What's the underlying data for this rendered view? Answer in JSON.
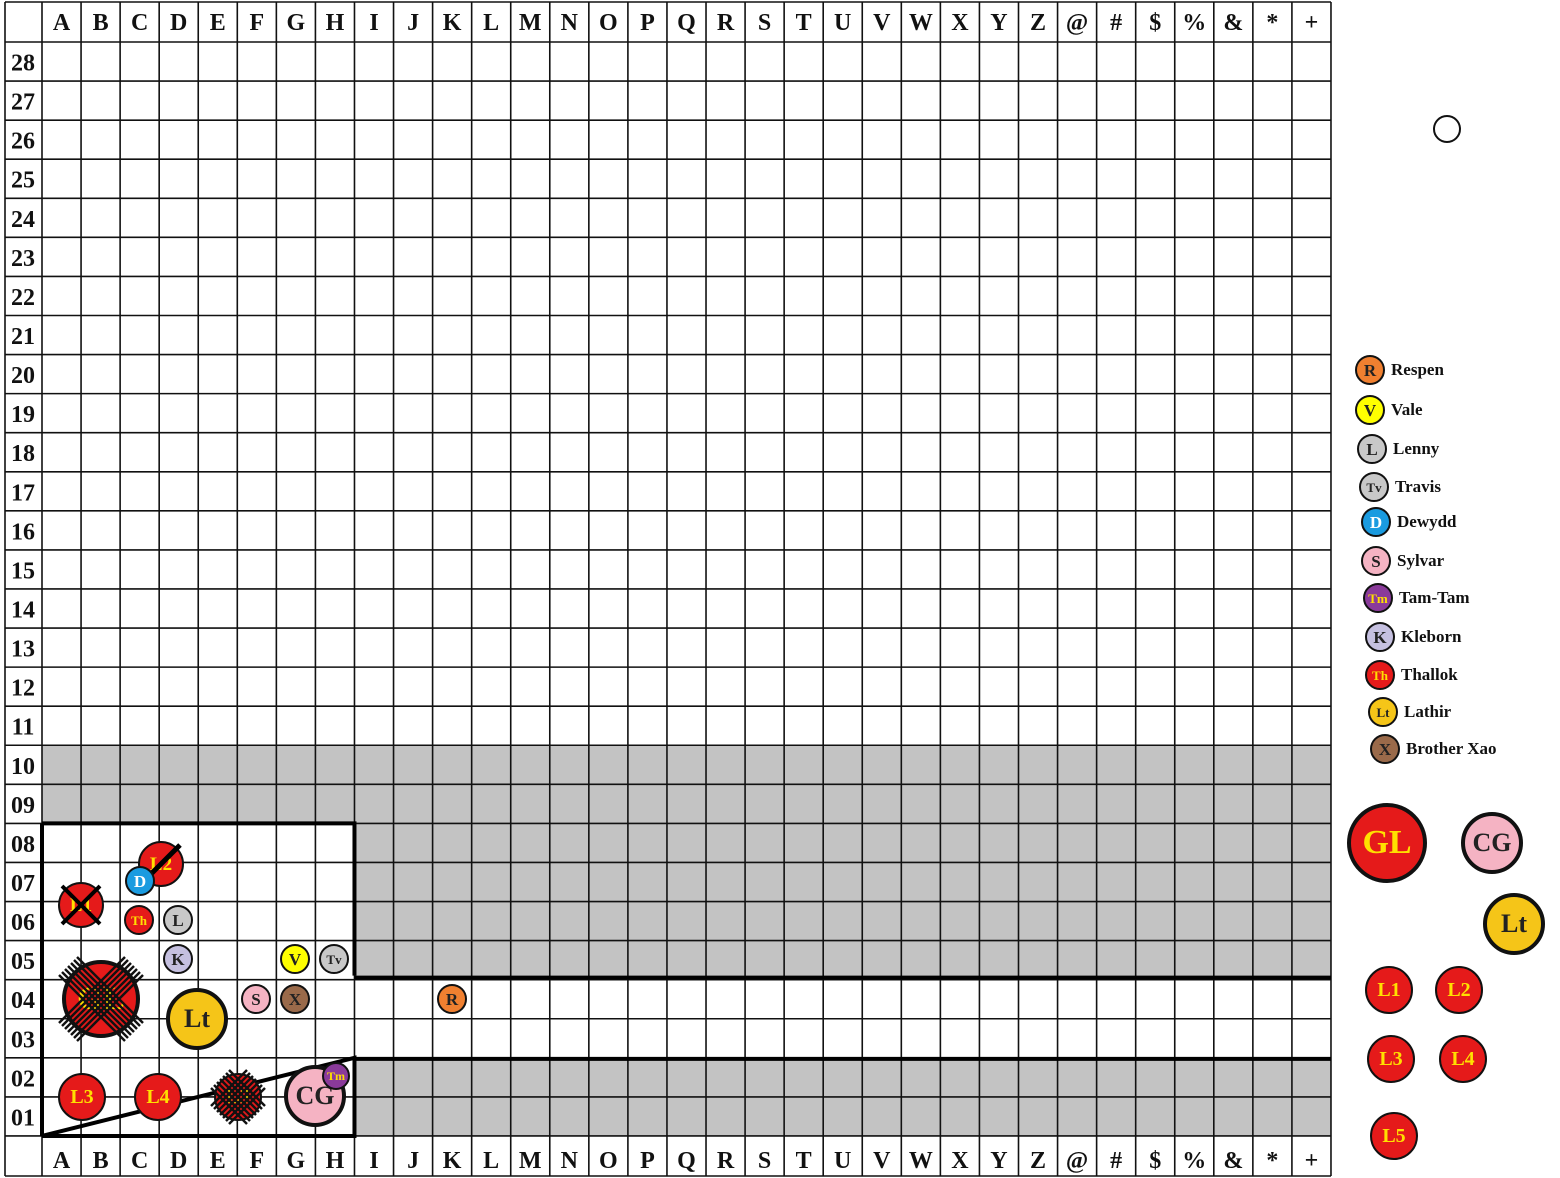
{
  "columns": [
    "A",
    "B",
    "C",
    "D",
    "E",
    "F",
    "G",
    "H",
    "I",
    "J",
    "K",
    "L",
    "M",
    "N",
    "O",
    "P",
    "Q",
    "R",
    "S",
    "T",
    "U",
    "V",
    "W",
    "X",
    "Y",
    "Z",
    "@",
    "#",
    "$",
    "%",
    "&",
    "*",
    "+"
  ],
  "rows": [
    "28",
    "27",
    "26",
    "25",
    "24",
    "23",
    "22",
    "21",
    "20",
    "19",
    "18",
    "17",
    "16",
    "15",
    "14",
    "13",
    "12",
    "11",
    "10",
    "09",
    "08",
    "07",
    "06",
    "05",
    "04",
    "03",
    "02",
    "01"
  ],
  "colors": {
    "shaded": "#c3c3c3",
    "grid": "#000000",
    "red": "#e51a1a",
    "pink": "#f5b3c3",
    "gold": "#f5c518",
    "yellow_text": "#ffe000"
  },
  "tokens_on_board": [
    {
      "label": "L2",
      "size": "std",
      "fill": "#e51a1a",
      "text": "#ffe000",
      "crossed": "slash"
    },
    {
      "label": "D",
      "size": "sm",
      "fill": "#1a9be0",
      "text": "#ffffff"
    },
    {
      "label": "L1",
      "size": "std",
      "fill": "#e51a1a",
      "text": "#ffe000",
      "crossed": "x"
    },
    {
      "label": "Th",
      "size": "sm",
      "fill": "#e51a1a",
      "text": "#ffe000"
    },
    {
      "label": "L",
      "size": "sm",
      "fill": "#c8c8c8",
      "text": "#222222"
    },
    {
      "label": "K",
      "size": "sm",
      "fill": "#c5c0e0",
      "text": "#222222"
    },
    {
      "label": "V",
      "size": "sm",
      "fill": "#ffff00",
      "text": "#222222"
    },
    {
      "label": "Tv",
      "size": "sm",
      "fill": "#c8c8c8",
      "text": "#222222"
    },
    {
      "label": "GL",
      "size": "big",
      "fill": "#e51a1a",
      "text": "#ffe000",
      "crossed": "scribble"
    },
    {
      "label": "Lt",
      "size": "big",
      "fill": "#f5c518",
      "text": "#222222"
    },
    {
      "label": "S",
      "size": "sm",
      "fill": "#f5b3c3",
      "text": "#222222"
    },
    {
      "label": "X",
      "size": "sm",
      "fill": "#9a6a4a",
      "text": "#222222"
    },
    {
      "label": "R",
      "size": "sm",
      "fill": "#f08030",
      "text": "#222222"
    },
    {
      "label": "L3",
      "size": "std",
      "fill": "#e51a1a",
      "text": "#ffe000"
    },
    {
      "label": "L4",
      "size": "std",
      "fill": "#e51a1a",
      "text": "#ffe000"
    },
    {
      "label": "L5",
      "size": "std",
      "fill": "#e51a1a",
      "text": "#ffe000",
      "crossed": "scribble"
    },
    {
      "label": "CG",
      "size": "big",
      "fill": "#f5b3c3",
      "text": "#222222"
    },
    {
      "label": "Tm",
      "size": "sm",
      "fill": "#8a3a9a",
      "text": "#ffe000"
    }
  ],
  "legend": [
    {
      "label": "R",
      "name": "Respen",
      "fill": "#f08030",
      "text": "#222222"
    },
    {
      "label": "V",
      "name": "Vale",
      "fill": "#ffff00",
      "text": "#222222"
    },
    {
      "label": "L",
      "name": "Lenny",
      "fill": "#c8c8c8",
      "text": "#222222"
    },
    {
      "label": "Tv",
      "name": "Travis",
      "fill": "#c8c8c8",
      "text": "#222222"
    },
    {
      "label": "D",
      "name": "Dewydd",
      "fill": "#1a9be0",
      "text": "#ffffff"
    },
    {
      "label": "S",
      "name": "Sylvar",
      "fill": "#f5b3c3",
      "text": "#222222"
    },
    {
      "label": "Tm",
      "name": "Tam-Tam",
      "fill": "#8a3a9a",
      "text": "#ffe000"
    },
    {
      "label": "K",
      "name": "Kleborn",
      "fill": "#c5c0e0",
      "text": "#222222"
    },
    {
      "label": "Th",
      "name": "Thallok",
      "fill": "#e51a1a",
      "text": "#ffe000"
    },
    {
      "label": "Lt",
      "name": "Lathir",
      "fill": "#f5c518",
      "text": "#222222"
    },
    {
      "label": "X",
      "name": "Brother Xao",
      "fill": "#9a6a4a",
      "text": "#222222"
    }
  ],
  "side_tokens": [
    {
      "label": "GL",
      "fill": "#e51a1a",
      "text": "#ffe000"
    },
    {
      "label": "CG",
      "fill": "#f5b3c3",
      "text": "#222222"
    },
    {
      "label": "Lt",
      "fill": "#f5c518",
      "text": "#222222"
    },
    {
      "label": "L1",
      "fill": "#e51a1a",
      "text": "#ffe000"
    },
    {
      "label": "L2",
      "fill": "#e51a1a",
      "text": "#ffe000"
    },
    {
      "label": "L3",
      "fill": "#e51a1a",
      "text": "#ffe000"
    },
    {
      "label": "L4",
      "fill": "#e51a1a",
      "text": "#ffe000"
    },
    {
      "label": "L5",
      "fill": "#e51a1a",
      "text": "#ffe000"
    }
  ]
}
